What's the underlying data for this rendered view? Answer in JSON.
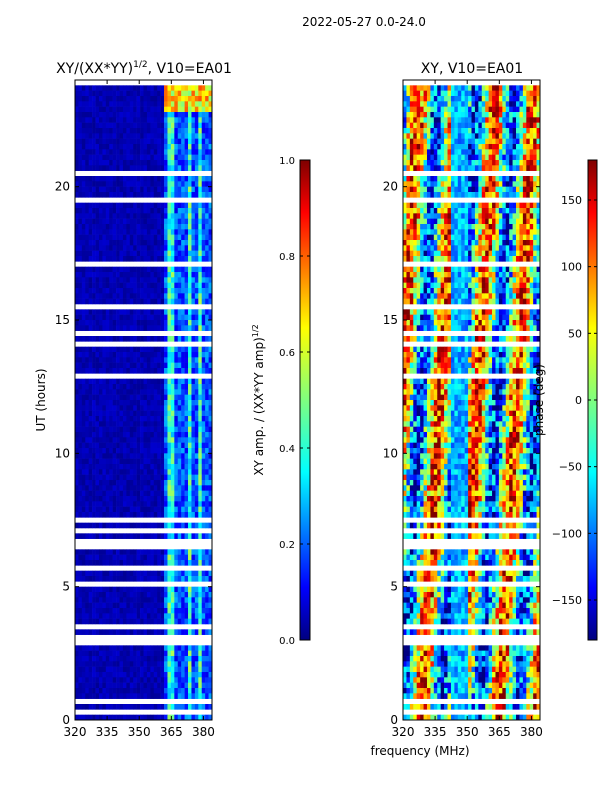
{
  "figure": {
    "suptitle": "2022-05-27 0.0-24.0",
    "xlabel": "frequency (MHz)",
    "ylabel": "UT (hours)"
  },
  "chart_data": [
    {
      "type": "heatmap",
      "title_main": "XY/(XX*YY)",
      "title_sup": "1/2",
      "title_suffix": ", V10=EA01",
      "xlim": [
        320,
        384
      ],
      "ylim": [
        0,
        24
      ],
      "xticks": [
        "320",
        "335",
        "350",
        "365",
        "380"
      ],
      "yticks": [
        "0",
        "5",
        "10",
        "15",
        "20"
      ],
      "colorbar": {
        "label_main": "XY amp. / (XX*YY amp)",
        "label_sup": "1/2",
        "range": [
          0.0,
          1.0
        ],
        "ticks": [
          "0.0",
          "0.2",
          "0.4",
          "0.6",
          "0.8",
          "1.0"
        ]
      }
    },
    {
      "type": "heatmap",
      "title": "XY, V10=EA01",
      "xlim": [
        320,
        384
      ],
      "ylim": [
        0,
        24
      ],
      "xticks": [
        "320",
        "335",
        "350",
        "365",
        "380"
      ],
      "yticks": [
        "0",
        "5",
        "10",
        "15",
        "20"
      ],
      "colorbar": {
        "label": "phase (deg)",
        "range": [
          -180,
          180
        ],
        "ticks": [
          "−150",
          "−100",
          "−50",
          "0",
          "50",
          "100",
          "150"
        ]
      }
    }
  ],
  "colors": {
    "colormap": [
      "#00007f",
      "#0000ff",
      "#007fff",
      "#00ffff",
      "#7fff7f",
      "#ffff00",
      "#ff7f00",
      "#ff0000",
      "#7f0000"
    ]
  }
}
